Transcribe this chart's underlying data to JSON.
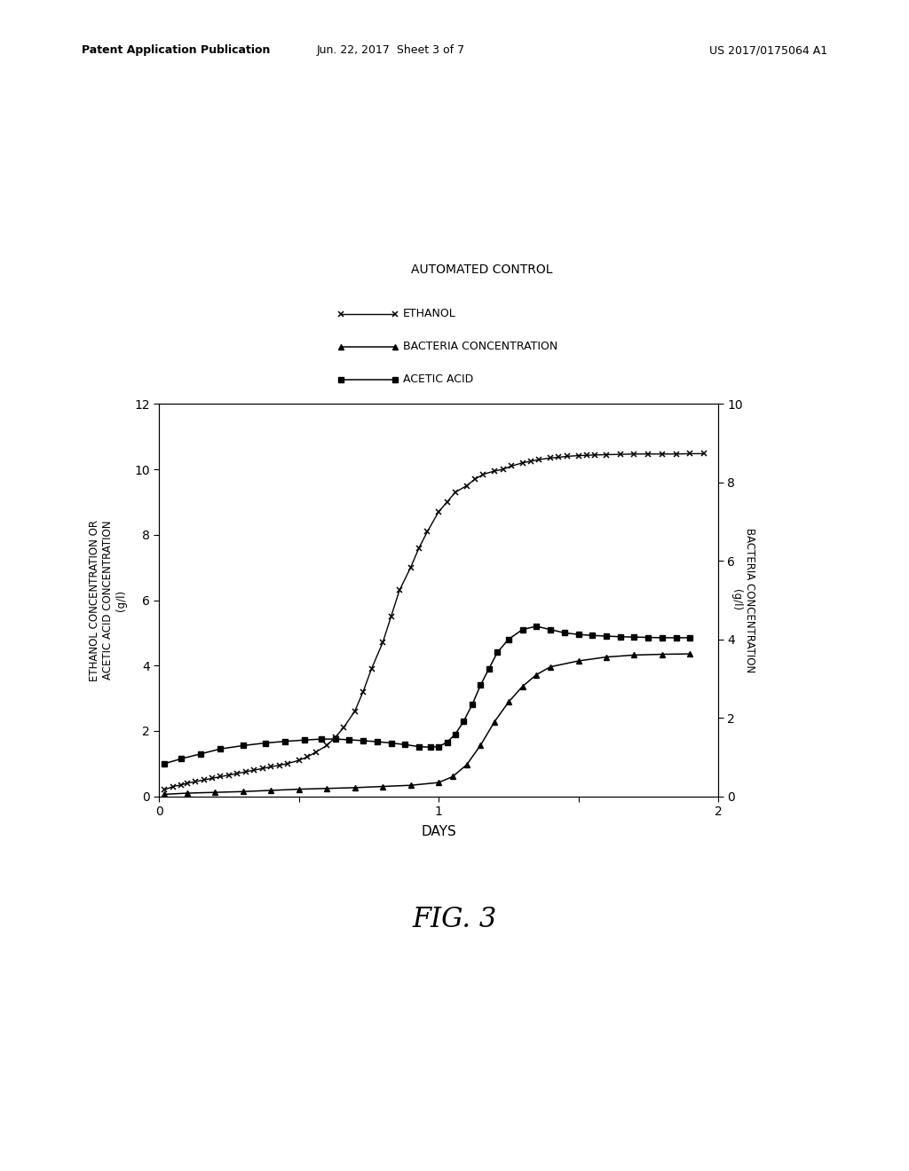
{
  "title": "AUTOMATED CONTROL",
  "legend_entries": [
    "ETHANOL",
    "BACTERIA CONCENTRATION",
    "ACETIC ACID"
  ],
  "xlabel": "DAYS",
  "ylabel_left": "ETHANOL CONCENTRATION OR\nACETIC ACID CONCENTRATION\n(g/l)",
  "ylabel_right": "BACTERIA CONCENTRATION\n(g/l)",
  "xlim": [
    0,
    2
  ],
  "ylim_left": [
    0,
    12
  ],
  "ylim_right": [
    0,
    10
  ],
  "xticks": [
    0,
    0.5,
    1.0,
    1.5,
    2.0
  ],
  "xticklabels": [
    "0",
    "",
    "1",
    "",
    "2"
  ],
  "yticks_left": [
    0,
    2,
    4,
    6,
    8,
    10,
    12
  ],
  "yticks_right": [
    0,
    2,
    4,
    6,
    8,
    10
  ],
  "fig_caption": "FIG. 3",
  "header_left": "Patent Application Publication",
  "header_mid": "Jun. 22, 2017  Sheet 3 of 7",
  "header_right": "US 2017/0175064 A1",
  "ethanol_x": [
    0.02,
    0.05,
    0.08,
    0.1,
    0.13,
    0.16,
    0.19,
    0.22,
    0.25,
    0.28,
    0.31,
    0.34,
    0.37,
    0.4,
    0.43,
    0.46,
    0.5,
    0.53,
    0.56,
    0.6,
    0.63,
    0.66,
    0.7,
    0.73,
    0.76,
    0.8,
    0.83,
    0.86,
    0.9,
    0.93,
    0.96,
    1.0,
    1.03,
    1.06,
    1.1,
    1.13,
    1.16,
    1.2,
    1.23,
    1.26,
    1.3,
    1.33,
    1.36,
    1.4,
    1.43,
    1.46,
    1.5,
    1.53,
    1.56,
    1.6,
    1.65,
    1.7,
    1.75,
    1.8,
    1.85,
    1.9,
    1.95
  ],
  "ethanol_y": [
    0.2,
    0.3,
    0.35,
    0.4,
    0.45,
    0.5,
    0.55,
    0.6,
    0.65,
    0.7,
    0.75,
    0.8,
    0.85,
    0.9,
    0.95,
    1.0,
    1.1,
    1.2,
    1.35,
    1.55,
    1.8,
    2.1,
    2.6,
    3.2,
    3.9,
    4.7,
    5.5,
    6.3,
    7.0,
    7.6,
    8.1,
    8.7,
    9.0,
    9.3,
    9.5,
    9.7,
    9.85,
    9.95,
    10.0,
    10.1,
    10.2,
    10.25,
    10.3,
    10.35,
    10.37,
    10.4,
    10.42,
    10.43,
    10.44,
    10.45,
    10.46,
    10.47,
    10.47,
    10.47,
    10.47,
    10.48,
    10.48
  ],
  "bacteria_x": [
    0.02,
    0.1,
    0.2,
    0.3,
    0.4,
    0.5,
    0.6,
    0.7,
    0.8,
    0.9,
    1.0,
    1.05,
    1.1,
    1.15,
    1.2,
    1.25,
    1.3,
    1.35,
    1.4,
    1.5,
    1.6,
    1.7,
    1.8,
    1.9
  ],
  "bacteria_y": [
    0.05,
    0.08,
    0.1,
    0.12,
    0.15,
    0.18,
    0.2,
    0.22,
    0.25,
    0.28,
    0.35,
    0.5,
    0.8,
    1.3,
    1.9,
    2.4,
    2.8,
    3.1,
    3.3,
    3.45,
    3.55,
    3.6,
    3.62,
    3.63
  ],
  "acetic_x": [
    0.02,
    0.08,
    0.15,
    0.22,
    0.3,
    0.38,
    0.45,
    0.52,
    0.58,
    0.63,
    0.68,
    0.73,
    0.78,
    0.83,
    0.88,
    0.93,
    0.97,
    1.0,
    1.03,
    1.06,
    1.09,
    1.12,
    1.15,
    1.18,
    1.21,
    1.25,
    1.3,
    1.35,
    1.4,
    1.45,
    1.5,
    1.55,
    1.6,
    1.65,
    1.7,
    1.75,
    1.8,
    1.85,
    1.9
  ],
  "acetic_y": [
    1.0,
    1.15,
    1.3,
    1.45,
    1.55,
    1.63,
    1.68,
    1.72,
    1.75,
    1.75,
    1.73,
    1.7,
    1.67,
    1.63,
    1.58,
    1.52,
    1.5,
    1.52,
    1.65,
    1.9,
    2.3,
    2.8,
    3.4,
    3.9,
    4.4,
    4.8,
    5.1,
    5.2,
    5.1,
    5.0,
    4.95,
    4.92,
    4.9,
    4.88,
    4.87,
    4.86,
    4.85,
    4.85,
    4.85
  ],
  "background_color": "#ffffff"
}
